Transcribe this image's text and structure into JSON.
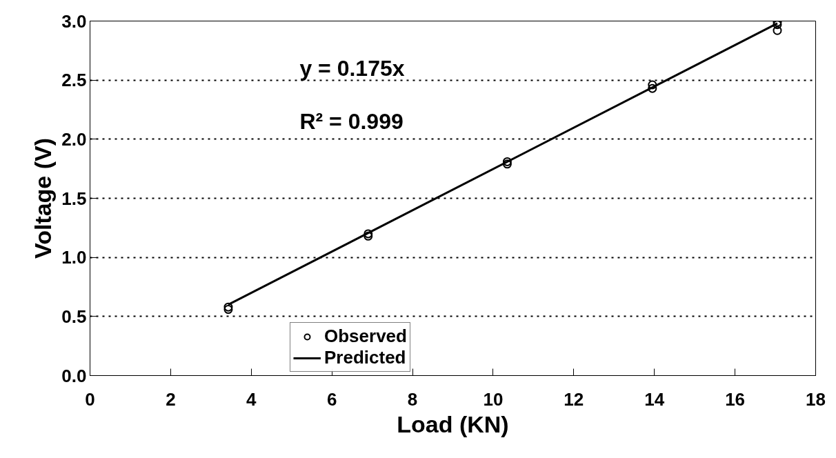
{
  "chart_data": {
    "type": "scatter",
    "xlabel": "Load (KN)",
    "ylabel": "Voltage (V)",
    "xlim": [
      0,
      18
    ],
    "xticks": [
      0,
      2,
      4,
      6,
      8,
      10,
      12,
      14,
      16,
      18
    ],
    "ylim": [
      0,
      3.0
    ],
    "yticks": [
      {
        "value": 0,
        "label": "0.0"
      },
      {
        "value": 0.5,
        "label": "0.5"
      },
      {
        "value": 1,
        "label": "1.0"
      },
      {
        "value": 1.5,
        "label": "1.5"
      },
      {
        "value": 2,
        "label": "2.0"
      },
      {
        "value": 2.5,
        "label": "2.5"
      },
      {
        "value": 3,
        "label": "3.0"
      }
    ],
    "grid": "y",
    "legend": "bottom",
    "marker": "circle",
    "annotations": [
      "y = 0.175x",
      "R² = 0.999"
    ],
    "series": [
      {
        "name": "Observed",
        "color": "#000000",
        "x": [
          3.43,
          3.43,
          6.9,
          6.9,
          10.35,
          10.35,
          13.95,
          13.95,
          17.05,
          17.05,
          17.05
        ],
        "values": [
          0.56,
          0.58,
          1.18,
          1.2,
          1.79,
          1.81,
          2.43,
          2.46,
          2.92,
          2.97,
          2.99
        ]
      },
      {
        "name": "Predicted",
        "type": "line",
        "color": "#000000",
        "line_style": "solid",
        "marker": "none",
        "x": [
          3.43,
          17.05
        ],
        "values": [
          0.6,
          2.98
        ]
      }
    ]
  }
}
